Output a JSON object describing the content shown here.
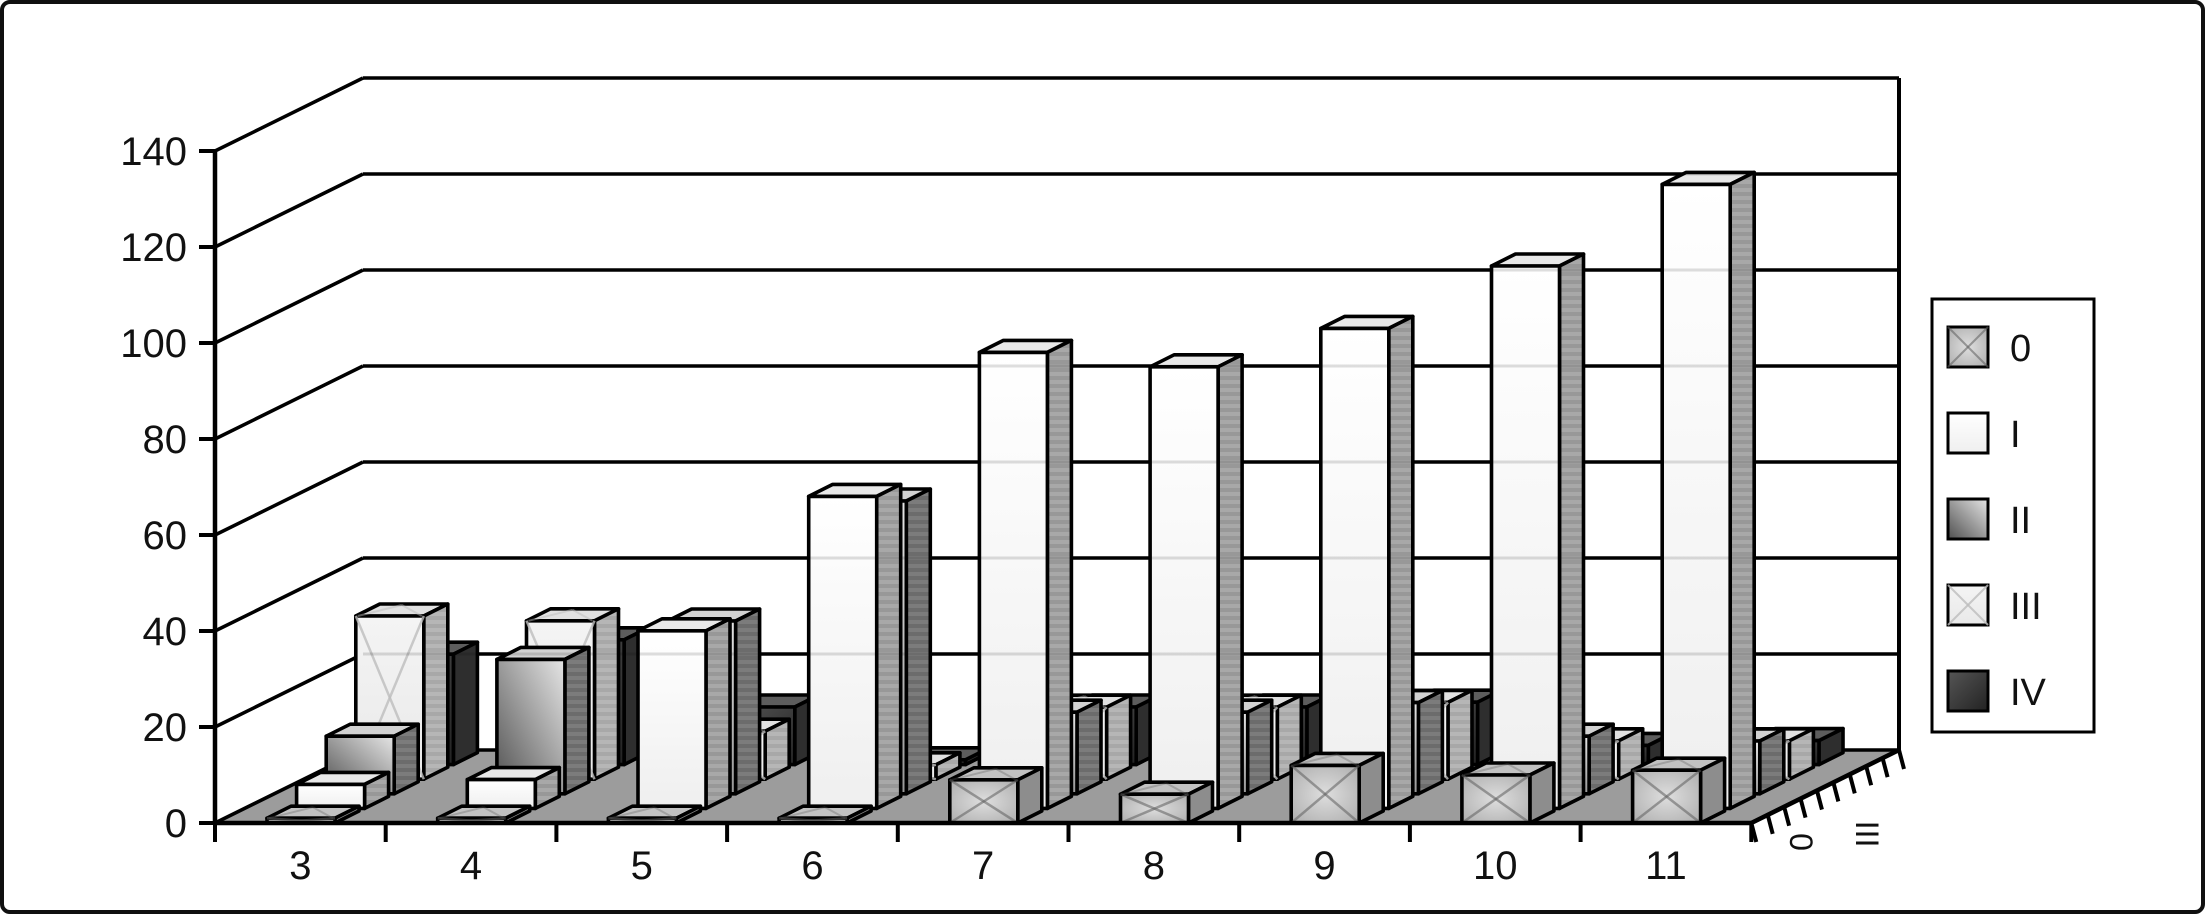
{
  "figure": {
    "kind": "3d-column-chart",
    "background": "#ffffff",
    "border_color": "#101010"
  },
  "chart_data": {
    "type": "bar",
    "projection": "3d-depth-rows",
    "title": "",
    "xlabel": "",
    "ylabel": "",
    "categories": [
      "3",
      "4",
      "5",
      "6",
      "7",
      "8",
      "9",
      "10",
      "11"
    ],
    "series": [
      {
        "name": "0",
        "values": [
          1,
          1,
          1,
          1,
          9,
          6,
          12,
          10,
          11
        ]
      },
      {
        "name": "I",
        "values": [
          5,
          6,
          37,
          65,
          95,
          92,
          100,
          113,
          130
        ]
      },
      {
        "name": "II",
        "values": [
          12,
          28,
          36,
          61,
          17,
          17,
          19,
          12,
          11
        ]
      },
      {
        "name": "III",
        "values": [
          34,
          33,
          10,
          3,
          15,
          15,
          16,
          8,
          8
        ]
      },
      {
        "name": "IV",
        "values": [
          23,
          26,
          12,
          1,
          12,
          12,
          13,
          4,
          5
        ]
      }
    ],
    "y_axis": {
      "min": 0,
      "max": 140,
      "step": 20,
      "tick_labels": [
        "0",
        "20",
        "40",
        "60",
        "80",
        "100",
        "120",
        "140"
      ]
    },
    "depth_axis": {
      "visible_rotated_labels": [
        "0",
        "III"
      ]
    },
    "legend": {
      "position": "right",
      "entries": [
        "0",
        "I",
        "II",
        "III",
        "IV"
      ]
    },
    "grid": true,
    "colors": {
      "axis_line": "#000000",
      "floor": "#9c9c9c",
      "wall": "#ffffff",
      "series_0_base": "#c9c9c9",
      "series_I_base": "#fafafa",
      "series_II_dark": "#4f4f4f",
      "series_II_light": "#e6e6e6",
      "series_III_base": "#f1f1f1",
      "series_IV_dark": "#222222",
      "text": "#111111"
    }
  }
}
